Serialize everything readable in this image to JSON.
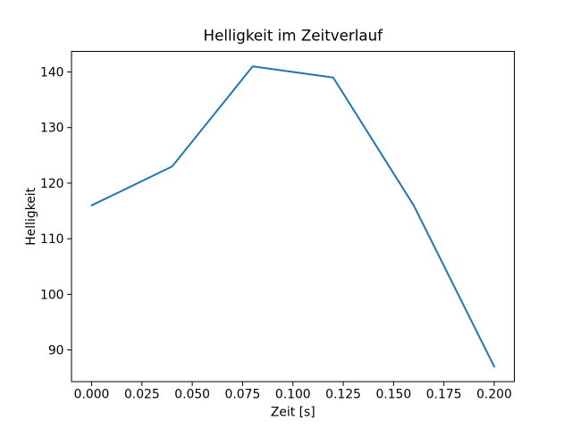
{
  "chart_data": {
    "type": "line",
    "title": "Helligkeit im Zeitverlauf",
    "xlabel": "Zeit [s]",
    "ylabel": "Helligkeit",
    "x": [
      0.0,
      0.04,
      0.08,
      0.12,
      0.16,
      0.2
    ],
    "series": [
      {
        "name": "Helligkeit",
        "values": [
          116,
          123,
          141,
          139,
          116,
          87
        ]
      }
    ],
    "xlim": [
      -0.01,
      0.21
    ],
    "ylim": [
      84.3,
      143.7
    ],
    "xticks": [
      0.0,
      0.025,
      0.05,
      0.075,
      0.1,
      0.125,
      0.15,
      0.175,
      0.2
    ],
    "xtick_labels": [
      "0.000",
      "0.025",
      "0.050",
      "0.075",
      "0.100",
      "0.125",
      "0.150",
      "0.175",
      "0.200"
    ],
    "yticks": [
      90,
      100,
      110,
      120,
      130,
      140
    ],
    "ytick_labels": [
      "90",
      "100",
      "110",
      "120",
      "130",
      "140"
    ],
    "line_color": "#1f77b4",
    "line_width": 2,
    "spine_color": "#000000",
    "background_color": "#ffffff",
    "grid": false,
    "legend_position": "none"
  }
}
